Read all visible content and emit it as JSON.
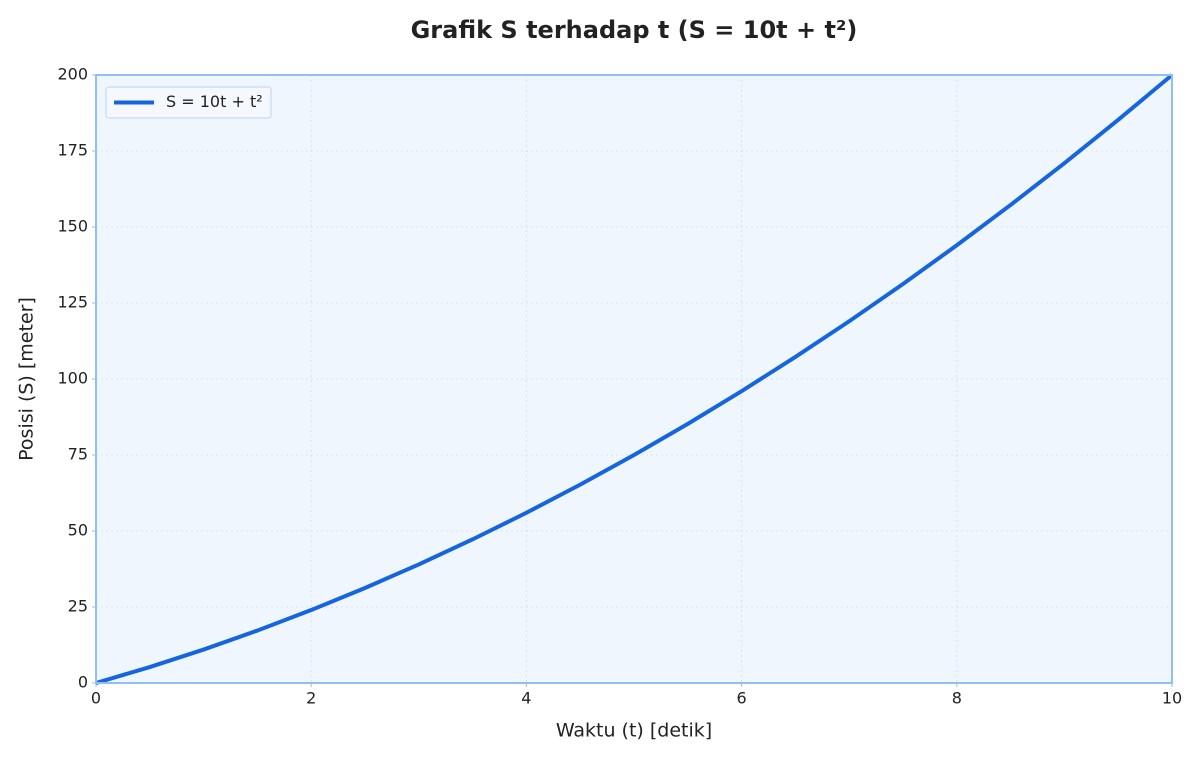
{
  "chart_data": {
    "type": "line",
    "title": "Grafik S terhadap t (S = 10t + t²)",
    "x_label": "Waktu (t) [detik]",
    "y_label": "Posisi (S) [meter]",
    "x": [
      0,
      0.5,
      1,
      1.5,
      2,
      2.5,
      3,
      3.5,
      4,
      4.5,
      5,
      5.5,
      6,
      6.5,
      7,
      7.5,
      8,
      8.5,
      9,
      9.5,
      10
    ],
    "series": [
      {
        "name": "S = 10t + t²",
        "color": "#1565e0",
        "values": [
          0,
          5.25,
          11,
          17.25,
          24,
          31.25,
          39,
          47.25,
          56,
          65.25,
          75,
          85.25,
          96,
          107.25,
          119,
          131.25,
          144,
          157.25,
          171,
          185.25,
          200
        ]
      }
    ],
    "xlim": [
      0,
      10
    ],
    "xticks": [
      0,
      2,
      4,
      6,
      8,
      10
    ],
    "ylim": [
      0,
      200
    ],
    "yticks": [
      0,
      25,
      50,
      75,
      100,
      125,
      150,
      175,
      200
    ],
    "grid": true,
    "legend": "upper-left"
  }
}
